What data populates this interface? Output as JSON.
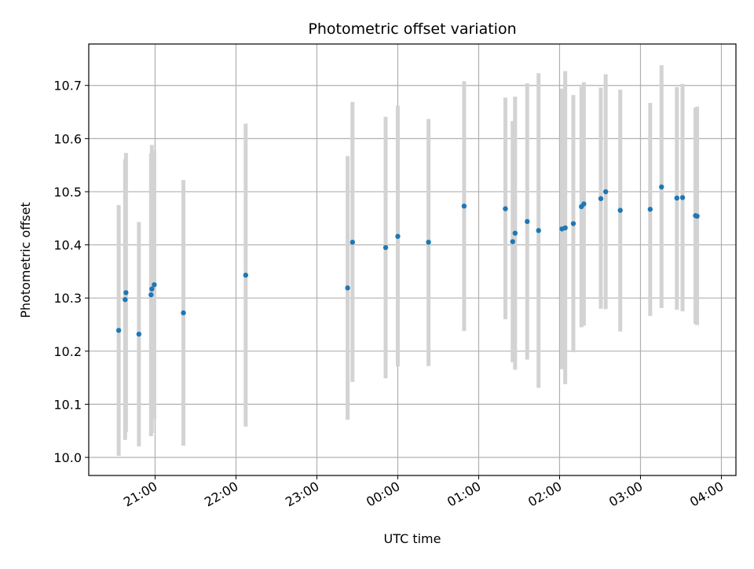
{
  "chart_data": {
    "type": "scatter",
    "title": "Photometric offset variation",
    "xlabel": "UTC time",
    "ylabel": "Photometric offset",
    "grid": true,
    "x_unit": "hours since 00:00 UTC (negative = previous evening)",
    "xlim": [
      -3.82,
      4.18
    ],
    "ylim": [
      9.966,
      10.778
    ],
    "x_ticks": [
      -3,
      -2,
      -1,
      0,
      1,
      2,
      3,
      4
    ],
    "x_tick_labels": [
      "21:00",
      "22:00",
      "23:00",
      "00:00",
      "01:00",
      "02:00",
      "03:00",
      "04:00"
    ],
    "y_ticks": [
      10.0,
      10.1,
      10.2,
      10.3,
      10.4,
      10.5,
      10.6,
      10.7
    ],
    "y_tick_labels": [
      "10.0",
      "10.1",
      "10.2",
      "10.3",
      "10.4",
      "10.5",
      "10.6",
      "10.7"
    ],
    "marker_color": "#1f77b4",
    "errorbar_color": "#d3d3d3",
    "points": [
      {
        "x": -3.45,
        "y": 10.239,
        "yerr_low": 10.003,
        "yerr_high": 10.475
      },
      {
        "x": -3.37,
        "y": 10.297,
        "yerr_low": 10.033,
        "yerr_high": 10.561
      },
      {
        "x": -3.36,
        "y": 10.31,
        "yerr_low": 10.048,
        "yerr_high": 10.573
      },
      {
        "x": -3.2,
        "y": 10.232,
        "yerr_low": 10.021,
        "yerr_high": 10.443
      },
      {
        "x": -3.05,
        "y": 10.306,
        "yerr_low": 10.04,
        "yerr_high": 10.572
      },
      {
        "x": -3.04,
        "y": 10.317,
        "yerr_low": 10.046,
        "yerr_high": 10.588
      },
      {
        "x": -3.01,
        "y": 10.325,
        "yerr_low": 10.072,
        "yerr_high": 10.578
      },
      {
        "x": -2.65,
        "y": 10.272,
        "yerr_low": 10.022,
        "yerr_high": 10.522
      },
      {
        "x": -1.88,
        "y": 10.343,
        "yerr_low": 10.058,
        "yerr_high": 10.628
      },
      {
        "x": -0.62,
        "y": 10.319,
        "yerr_low": 10.071,
        "yerr_high": 10.567
      },
      {
        "x": -0.56,
        "y": 10.405,
        "yerr_low": 10.142,
        "yerr_high": 10.669
      },
      {
        "x": -0.15,
        "y": 10.395,
        "yerr_low": 10.149,
        "yerr_high": 10.641
      },
      {
        "x": 0.0,
        "y": 10.416,
        "yerr_low": 10.171,
        "yerr_high": 10.662
      },
      {
        "x": 0.38,
        "y": 10.405,
        "yerr_low": 10.172,
        "yerr_high": 10.637
      },
      {
        "x": 0.82,
        "y": 10.473,
        "yerr_low": 10.238,
        "yerr_high": 10.708
      },
      {
        "x": 1.33,
        "y": 10.468,
        "yerr_low": 10.26,
        "yerr_high": 10.677
      },
      {
        "x": 1.42,
        "y": 10.406,
        "yerr_low": 10.179,
        "yerr_high": 10.633
      },
      {
        "x": 1.45,
        "y": 10.422,
        "yerr_low": 10.165,
        "yerr_high": 10.679
      },
      {
        "x": 1.6,
        "y": 10.444,
        "yerr_low": 10.184,
        "yerr_high": 10.704
      },
      {
        "x": 1.74,
        "y": 10.427,
        "yerr_low": 10.131,
        "yerr_high": 10.723
      },
      {
        "x": 2.03,
        "y": 10.43,
        "yerr_low": 10.166,
        "yerr_high": 10.694
      },
      {
        "x": 2.07,
        "y": 10.432,
        "yerr_low": 10.138,
        "yerr_high": 10.727
      },
      {
        "x": 2.17,
        "y": 10.44,
        "yerr_low": 10.198,
        "yerr_high": 10.682
      },
      {
        "x": 2.27,
        "y": 10.472,
        "yerr_low": 10.245,
        "yerr_high": 10.698
      },
      {
        "x": 2.3,
        "y": 10.477,
        "yerr_low": 10.248,
        "yerr_high": 10.706
      },
      {
        "x": 2.51,
        "y": 10.487,
        "yerr_low": 10.28,
        "yerr_high": 10.696
      },
      {
        "x": 2.57,
        "y": 10.5,
        "yerr_low": 10.279,
        "yerr_high": 10.721
      },
      {
        "x": 2.75,
        "y": 10.465,
        "yerr_low": 10.237,
        "yerr_high": 10.692
      },
      {
        "x": 3.12,
        "y": 10.467,
        "yerr_low": 10.266,
        "yerr_high": 10.667
      },
      {
        "x": 3.26,
        "y": 10.509,
        "yerr_low": 10.281,
        "yerr_high": 10.738
      },
      {
        "x": 3.45,
        "y": 10.488,
        "yerr_low": 10.278,
        "yerr_high": 10.697
      },
      {
        "x": 3.52,
        "y": 10.489,
        "yerr_low": 10.275,
        "yerr_high": 10.703
      },
      {
        "x": 3.68,
        "y": 10.455,
        "yerr_low": 10.251,
        "yerr_high": 10.658
      },
      {
        "x": 3.7,
        "y": 10.454,
        "yerr_low": 10.249,
        "yerr_high": 10.66
      }
    ]
  }
}
